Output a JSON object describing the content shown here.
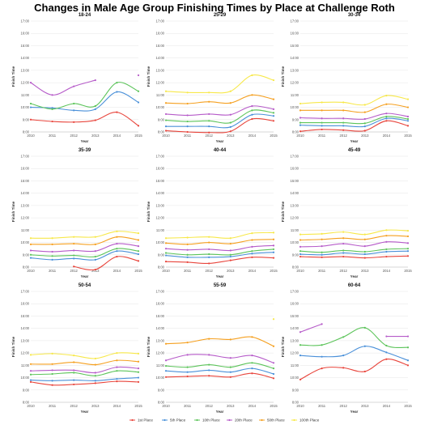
{
  "title": "Changes in Male Age Group Finishing Times by Place at Challenge Roth",
  "colors": {
    "1st Place": "#e8453c",
    "5th Place": "#4a90d9",
    "10th Place": "#5cc45a",
    "20th Place": "#b65bc9",
    "50th Place": "#f5a020",
    "100th Place": "#f7e84a"
  },
  "chart_data": {
    "type": "line",
    "x": [
      2010,
      2011,
      2012,
      2013,
      2014,
      2015
    ],
    "xlabel": "Year",
    "ylabel": "Finish Time",
    "yticks": [
      "8:00",
      "9:00",
      "10:00",
      "11:00",
      "12:00",
      "13:00",
      "14:00",
      "15:00",
      "16:00",
      "17:00"
    ],
    "ylim": [
      8,
      17
    ],
    "legend": [
      "1st Place",
      "5th Place",
      "10th Place",
      "20th Place",
      "50th Place",
      "100th Place"
    ],
    "legend_position": "bottom",
    "panels": [
      {
        "title": "18-24",
        "series": [
          {
            "name": "1st Place",
            "values": [
              9.0,
              8.85,
              8.8,
              8.95,
              9.6,
              8.5
            ]
          },
          {
            "name": "5th Place",
            "values": [
              10.0,
              9.95,
              9.75,
              9.85,
              11.25,
              10.4
            ]
          },
          {
            "name": "10th Place",
            "values": [
              10.3,
              9.85,
              10.3,
              10.1,
              12.0,
              11.3
            ]
          },
          {
            "name": "20th Place",
            "values": [
              12.0,
              11.0,
              11.7,
              12.2,
              null,
              12.6
            ]
          }
        ]
      },
      {
        "title": "25-29",
        "series": [
          {
            "name": "1st Place",
            "values": [
              8.1,
              8.0,
              7.95,
              8.05,
              9.05,
              8.9
            ]
          },
          {
            "name": "5th Place",
            "values": [
              8.45,
              8.45,
              8.45,
              8.4,
              9.4,
              9.3
            ]
          },
          {
            "name": "10th Place",
            "values": [
              8.95,
              8.85,
              8.9,
              8.75,
              9.75,
              9.55
            ]
          },
          {
            "name": "20th Place",
            "values": [
              9.45,
              9.35,
              9.45,
              9.4,
              10.1,
              9.85
            ]
          },
          {
            "name": "50th Place",
            "values": [
              10.35,
              10.3,
              10.45,
              10.35,
              11.0,
              10.65
            ]
          },
          {
            "name": "100th Place",
            "values": [
              11.3,
              11.2,
              11.2,
              11.3,
              12.6,
              12.2
            ]
          }
        ]
      },
      {
        "title": "30-34",
        "series": [
          {
            "name": "1st Place",
            "values": [
              8.05,
              8.2,
              8.15,
              8.1,
              8.9,
              8.5
            ]
          },
          {
            "name": "5th Place",
            "values": [
              8.55,
              8.5,
              8.5,
              8.45,
              9.1,
              8.9
            ]
          },
          {
            "name": "10th Place",
            "values": [
              8.75,
              8.75,
              8.75,
              8.7,
              9.25,
              9.05
            ]
          },
          {
            "name": "20th Place",
            "values": [
              9.15,
              9.1,
              9.1,
              9.05,
              9.5,
              9.25
            ]
          },
          {
            "name": "50th Place",
            "values": [
              9.75,
              9.75,
              9.75,
              9.6,
              10.25,
              10.0
            ]
          },
          {
            "name": "100th Place",
            "values": [
              10.3,
              10.4,
              10.4,
              10.2,
              10.95,
              10.65
            ]
          }
        ]
      },
      {
        "title": "35-39",
        "series": [
          {
            "name": "1st Place",
            "values": [
              null,
              null,
              8.05,
              7.8,
              8.85,
              8.5
            ]
          },
          {
            "name": "5th Place",
            "values": [
              8.75,
              8.6,
              8.7,
              8.6,
              9.3,
              9.05
            ]
          },
          {
            "name": "10th Place",
            "values": [
              9.0,
              8.9,
              8.95,
              8.85,
              9.5,
              9.3
            ]
          },
          {
            "name": "20th Place",
            "values": [
              9.35,
              9.25,
              9.35,
              9.3,
              9.9,
              9.7
            ]
          },
          {
            "name": "50th Place",
            "values": [
              9.85,
              9.85,
              9.9,
              9.85,
              10.45,
              10.2
            ]
          },
          {
            "name": "100th Place",
            "values": [
              10.35,
              10.35,
              10.45,
              10.45,
              10.9,
              10.75
            ]
          }
        ]
      },
      {
        "title": "40-44",
        "series": [
          {
            "name": "1st Place",
            "values": [
              8.45,
              8.4,
              8.3,
              8.55,
              8.8,
              8.75
            ]
          },
          {
            "name": "5th Place",
            "values": [
              8.95,
              8.8,
              8.8,
              8.85,
              9.1,
              9.2
            ]
          },
          {
            "name": "10th Place",
            "values": [
              9.15,
              9.0,
              9.05,
              9.0,
              9.3,
              9.45
            ]
          },
          {
            "name": "20th Place",
            "values": [
              9.5,
              9.4,
              9.45,
              9.35,
              9.65,
              9.75
            ]
          },
          {
            "name": "50th Place",
            "values": [
              9.95,
              9.85,
              10.0,
              9.9,
              10.2,
              10.25
            ]
          },
          {
            "name": "100th Place",
            "values": [
              10.35,
              10.4,
              10.45,
              10.35,
              10.75,
              10.8
            ]
          }
        ]
      },
      {
        "title": "45-49",
        "series": [
          {
            "name": "1st Place",
            "values": [
              8.85,
              8.8,
              8.85,
              8.75,
              8.85,
              8.9
            ]
          },
          {
            "name": "5th Place",
            "values": [
              9.05,
              9.0,
              9.15,
              9.05,
              9.25,
              9.3
            ]
          },
          {
            "name": "10th Place",
            "values": [
              9.3,
              9.2,
              9.35,
              9.25,
              9.45,
              9.5
            ]
          },
          {
            "name": "20th Place",
            "values": [
              9.65,
              9.7,
              9.9,
              9.7,
              10.05,
              9.95
            ]
          },
          {
            "name": "50th Place",
            "values": [
              10.2,
              10.25,
              10.35,
              10.25,
              10.55,
              10.5
            ]
          },
          {
            "name": "100th Place",
            "values": [
              10.65,
              10.7,
              10.85,
              10.65,
              11.0,
              10.95
            ]
          }
        ]
      },
      {
        "title": "50-54",
        "series": [
          {
            "name": "1st Place",
            "values": [
              9.65,
              9.4,
              9.45,
              9.55,
              9.7,
              9.65
            ]
          },
          {
            "name": "5th Place",
            "values": [
              9.8,
              9.75,
              9.8,
              9.75,
              9.9,
              10.0
            ]
          },
          {
            "name": "10th Place",
            "values": [
              10.25,
              10.3,
              10.4,
              10.15,
              10.55,
              10.45
            ]
          },
          {
            "name": "20th Place",
            "values": [
              10.55,
              10.6,
              10.6,
              10.4,
              10.85,
              10.75
            ]
          },
          {
            "name": "50th Place",
            "values": [
              11.1,
              11.1,
              11.25,
              11.05,
              11.4,
              11.3
            ]
          },
          {
            "name": "100th Place",
            "values": [
              11.85,
              11.95,
              11.8,
              11.55,
              12.0,
              11.95
            ]
          }
        ]
      },
      {
        "title": "55-59",
        "series": [
          {
            "name": "1st Place",
            "values": [
              10.05,
              10.1,
              10.15,
              10.05,
              10.35,
              9.95
            ]
          },
          {
            "name": "5th Place",
            "values": [
              10.55,
              10.45,
              10.6,
              10.45,
              10.75,
              10.3
            ]
          },
          {
            "name": "10th Place",
            "values": [
              10.95,
              10.85,
              11.05,
              10.85,
              11.2,
              10.75
            ]
          },
          {
            "name": "20th Place",
            "values": [
              11.4,
              11.85,
              11.85,
              11.6,
              11.8,
              11.2
            ]
          },
          {
            "name": "50th Place",
            "values": [
              12.75,
              12.85,
              13.15,
              13.1,
              13.3,
              12.55
            ]
          },
          {
            "name": "100th Place",
            "values": [
              null,
              null,
              null,
              null,
              null,
              14.75
            ]
          }
        ]
      },
      {
        "title": "60-64",
        "series": [
          {
            "name": "1st Place",
            "values": [
              9.85,
              10.75,
              10.8,
              10.5,
              11.5,
              11.0
            ]
          },
          {
            "name": "5th Place",
            "values": [
              11.8,
              11.7,
              11.8,
              12.55,
              12.05,
              11.4
            ]
          },
          {
            "name": "10th Place",
            "values": [
              12.65,
              12.65,
              13.3,
              14.05,
              12.6,
              12.45
            ]
          },
          {
            "name": "20th Place",
            "values": [
              13.7,
              14.35,
              null,
              null,
              13.35,
              13.35
            ]
          }
        ]
      }
    ]
  }
}
